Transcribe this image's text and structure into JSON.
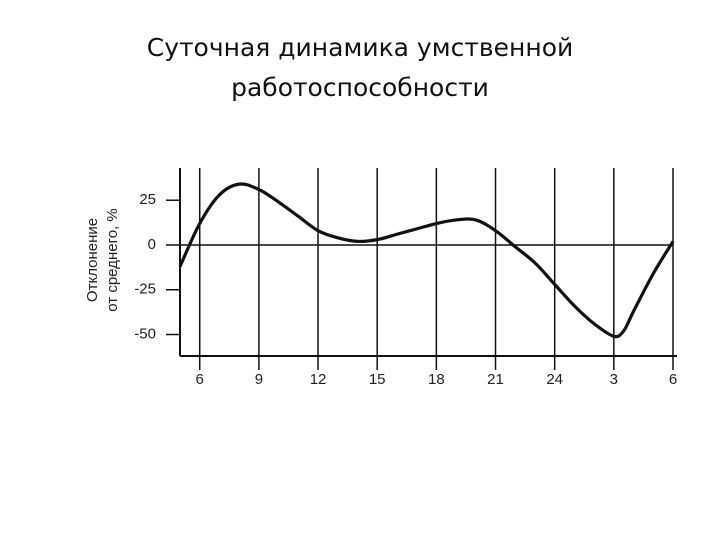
{
  "chart_data": {
    "type": "line",
    "title": "Суточная динамика умственной работоспособности",
    "y_label": [
      "Отклонение",
      "от среднего, %"
    ],
    "x": [
      5,
      6,
      7,
      8,
      9,
      10,
      11,
      12,
      13,
      14,
      15,
      16,
      17,
      18,
      19,
      20,
      21,
      22,
      23,
      24,
      25,
      26,
      27,
      27.5,
      28,
      29,
      30
    ],
    "series": [
      {
        "color": "#111111",
        "values": [
          -12,
          12,
          28,
          34,
          31,
          24,
          16,
          8,
          4,
          2,
          3,
          6,
          9,
          12,
          14,
          14,
          8,
          -1,
          -10,
          -22,
          -34,
          -44,
          -51,
          -48,
          -37,
          -16,
          2
        ]
      }
    ],
    "xlim": [
      5,
      30
    ],
    "xticks": [
      6,
      9,
      12,
      15,
      18,
      21,
      24,
      {
        "value": 27,
        "label": "3"
      },
      {
        "value": 30,
        "label": "6"
      }
    ],
    "ylim": [
      -62,
      43
    ],
    "yticks": [
      25,
      0,
      -25,
      -50
    ],
    "vertical_grid": true,
    "zero_line": true
  }
}
